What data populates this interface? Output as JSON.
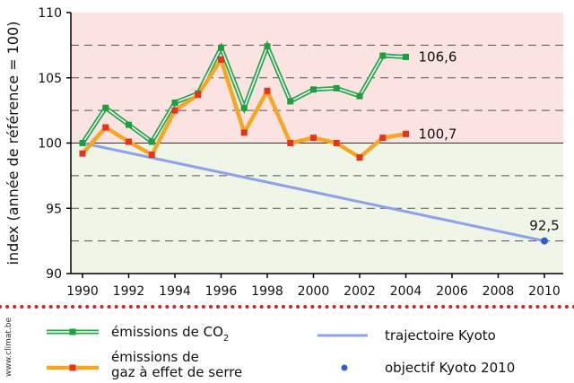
{
  "chart_data": {
    "type": "line",
    "ylabel": "index (année de référence = 100)",
    "ylim": [
      90,
      110
    ],
    "yticks": [
      90,
      95,
      100,
      105,
      110
    ],
    "xlim": [
      1990,
      2010
    ],
    "xticks": [
      1990,
      1992,
      1994,
      1996,
      1998,
      2000,
      2002,
      2004,
      2006,
      2008,
      2010
    ],
    "grid": "dashed horizontal lines",
    "zones": [
      {
        "from": 100,
        "to": 110,
        "color": "#fbe3e1"
      },
      {
        "from": 90,
        "to": 100,
        "color": "#eff5e7"
      }
    ],
    "series": [
      {
        "name": "émissions de CO2",
        "legend_text": "émissions de CO",
        "legend_sub": "2",
        "color": "#22a84a",
        "style": "double-green",
        "marker": "square-green",
        "x": [
          1990,
          1991,
          1992,
          1993,
          1994,
          1995,
          1996,
          1997,
          1998,
          1999,
          2000,
          2001,
          2002,
          2003,
          2004
        ],
        "y": [
          100.0,
          102.7,
          101.4,
          100.1,
          103.1,
          103.8,
          107.3,
          102.7,
          107.4,
          103.2,
          104.1,
          104.2,
          103.6,
          106.7,
          106.6
        ],
        "end_label": "106,6"
      },
      {
        "name": "émissions de gaz à effet de serre",
        "legend_text": [
          "émissions de",
          "gaz à effet de serre"
        ],
        "color": "#f5a623",
        "style": "thick-orange",
        "marker": "square-red",
        "x": [
          1990,
          1991,
          1992,
          1993,
          1994,
          1995,
          1996,
          1997,
          1998,
          1999,
          2000,
          2001,
          2002,
          2003,
          2004
        ],
        "y": [
          99.2,
          101.2,
          100.1,
          99.1,
          102.5,
          103.7,
          106.4,
          100.8,
          104.0,
          100.0,
          100.4,
          100.0,
          98.9,
          100.4,
          100.7
        ],
        "end_label": "100,7"
      },
      {
        "name": "trajectoire Kyoto",
        "color": "#8fa0ec",
        "style": "line",
        "x": [
          1990,
          2010
        ],
        "y": [
          100.0,
          92.5
        ]
      },
      {
        "name": "objectif Kyoto 2010",
        "color": "#2a5fd6",
        "style": "point",
        "x": [
          2010
        ],
        "y": [
          92.5
        ],
        "end_label": "92,5"
      }
    ],
    "legend_position": "bottom",
    "credit": "www.climat.be"
  }
}
